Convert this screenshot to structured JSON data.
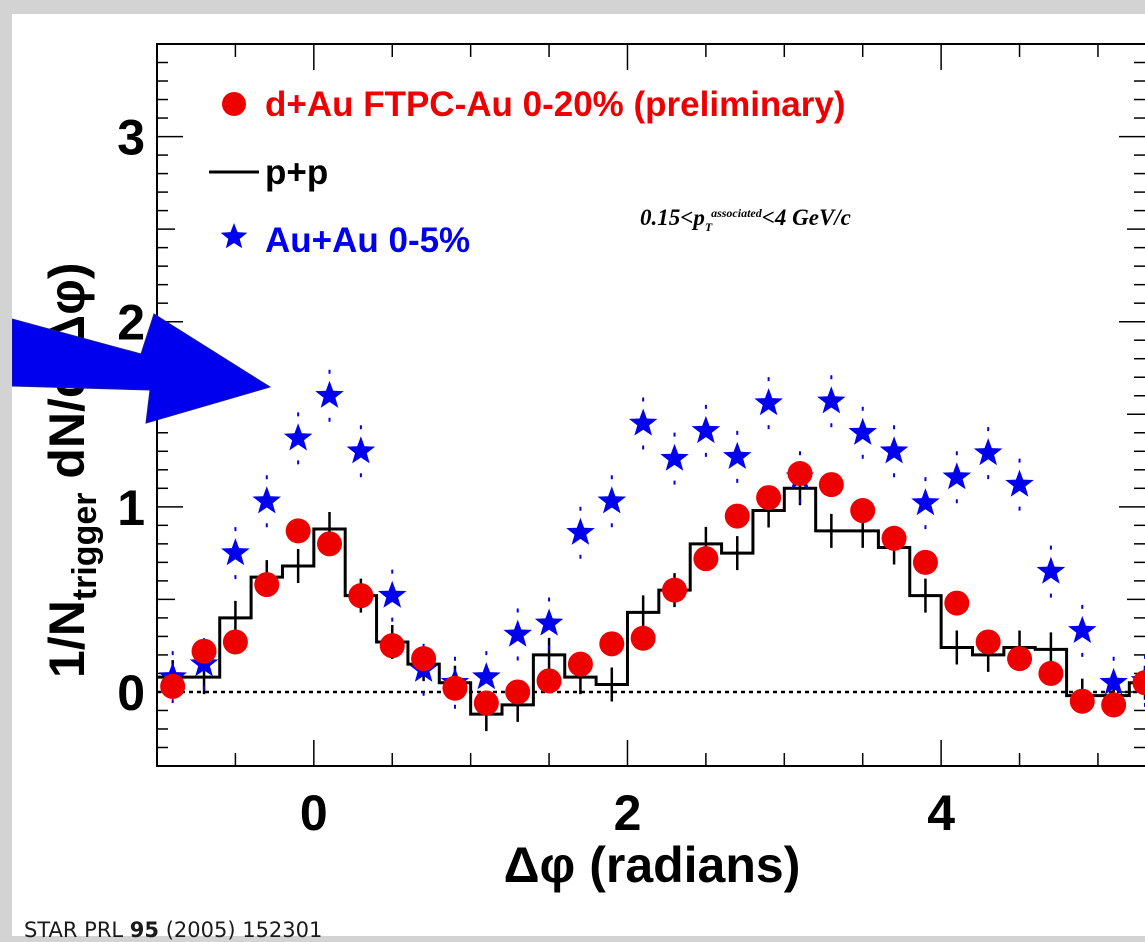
{
  "chart_data": {
    "type": "scatter",
    "xlabel": "Δφ (radians)",
    "ylabel_prefix": "1/N",
    "ylabel_sub": "trigger",
    "ylabel_suffix": " dN/d(Δφ)",
    "xlim": [
      -1.0,
      5.3
    ],
    "ylim": [
      -0.4,
      3.5
    ],
    "xticks": [
      0,
      2,
      4
    ],
    "yticks": [
      0,
      1,
      2,
      3
    ],
    "annotation": {
      "pre": "0.15<p",
      "sub": "T",
      "sup": "associated",
      "post": "<4 GeV/c"
    },
    "series": [
      {
        "name": "d+Au FTPC-Au 0-20% (preliminary)",
        "marker": "circle",
        "color": "#ee0000",
        "x": [
          -0.9,
          -0.7,
          -0.5,
          -0.3,
          -0.1,
          0.1,
          0.3,
          0.5,
          0.7,
          0.9,
          1.1,
          1.3,
          1.5,
          1.7,
          1.9,
          2.1,
          2.3,
          2.5,
          2.7,
          2.9,
          3.1,
          3.3,
          3.5,
          3.7,
          3.9,
          4.1,
          4.3,
          4.5,
          4.7,
          4.9,
          5.1,
          5.3
        ],
        "y": [
          0.03,
          0.22,
          0.27,
          0.58,
          0.87,
          0.8,
          0.52,
          0.25,
          0.18,
          0.02,
          -0.06,
          0.0,
          0.06,
          0.15,
          0.26,
          0.29,
          0.55,
          0.72,
          0.95,
          1.05,
          1.18,
          1.12,
          0.98,
          0.83,
          0.7,
          0.48,
          0.27,
          0.18,
          0.1,
          -0.05,
          -0.07,
          0.05
        ]
      },
      {
        "name": "p+p",
        "marker": "histogram",
        "color": "#000000",
        "x": [
          -0.9,
          -0.7,
          -0.5,
          -0.3,
          -0.1,
          0.1,
          0.3,
          0.5,
          0.7,
          0.9,
          1.1,
          1.3,
          1.5,
          1.7,
          1.9,
          2.1,
          2.3,
          2.5,
          2.7,
          2.9,
          3.1,
          3.3,
          3.5,
          3.7,
          3.9,
          4.1,
          4.3,
          4.5,
          4.7,
          4.9,
          5.1,
          5.3
        ],
        "y": [
          0.08,
          0.08,
          0.4,
          0.62,
          0.68,
          0.88,
          0.52,
          0.27,
          0.15,
          0.05,
          -0.12,
          -0.07,
          0.2,
          0.08,
          0.04,
          0.43,
          0.55,
          0.8,
          0.75,
          0.98,
          1.1,
          0.87,
          0.87,
          0.78,
          0.52,
          0.24,
          0.2,
          0.24,
          0.23,
          -0.02,
          -0.02,
          0.05
        ]
      },
      {
        "name": "Au+Au 0-5%",
        "marker": "star",
        "color": "#0000ee",
        "x": [
          -0.9,
          -0.7,
          -0.5,
          -0.3,
          -0.1,
          0.1,
          0.3,
          0.5,
          0.7,
          0.9,
          1.1,
          1.3,
          1.5,
          1.7,
          1.9,
          2.1,
          2.3,
          2.5,
          2.7,
          2.9,
          3.1,
          3.3,
          3.5,
          3.7,
          3.9,
          4.1,
          4.3,
          4.5,
          4.7,
          4.9,
          5.1,
          5.3
        ],
        "y": [
          0.08,
          0.15,
          0.75,
          1.03,
          1.37,
          1.6,
          1.3,
          0.52,
          0.12,
          0.05,
          0.08,
          0.31,
          0.37,
          0.86,
          1.03,
          1.45,
          1.26,
          1.41,
          1.27,
          1.56,
          1.16,
          1.57,
          1.4,
          1.3,
          1.02,
          1.16,
          1.29,
          1.12,
          0.65,
          0.33,
          0.05,
          0.06
        ]
      }
    ]
  },
  "citation": {
    "prefix": "STAR PRL ",
    "volume": "95",
    "suffix": " (2005) 152301"
  },
  "arrow": {
    "color": "#0000ee"
  }
}
